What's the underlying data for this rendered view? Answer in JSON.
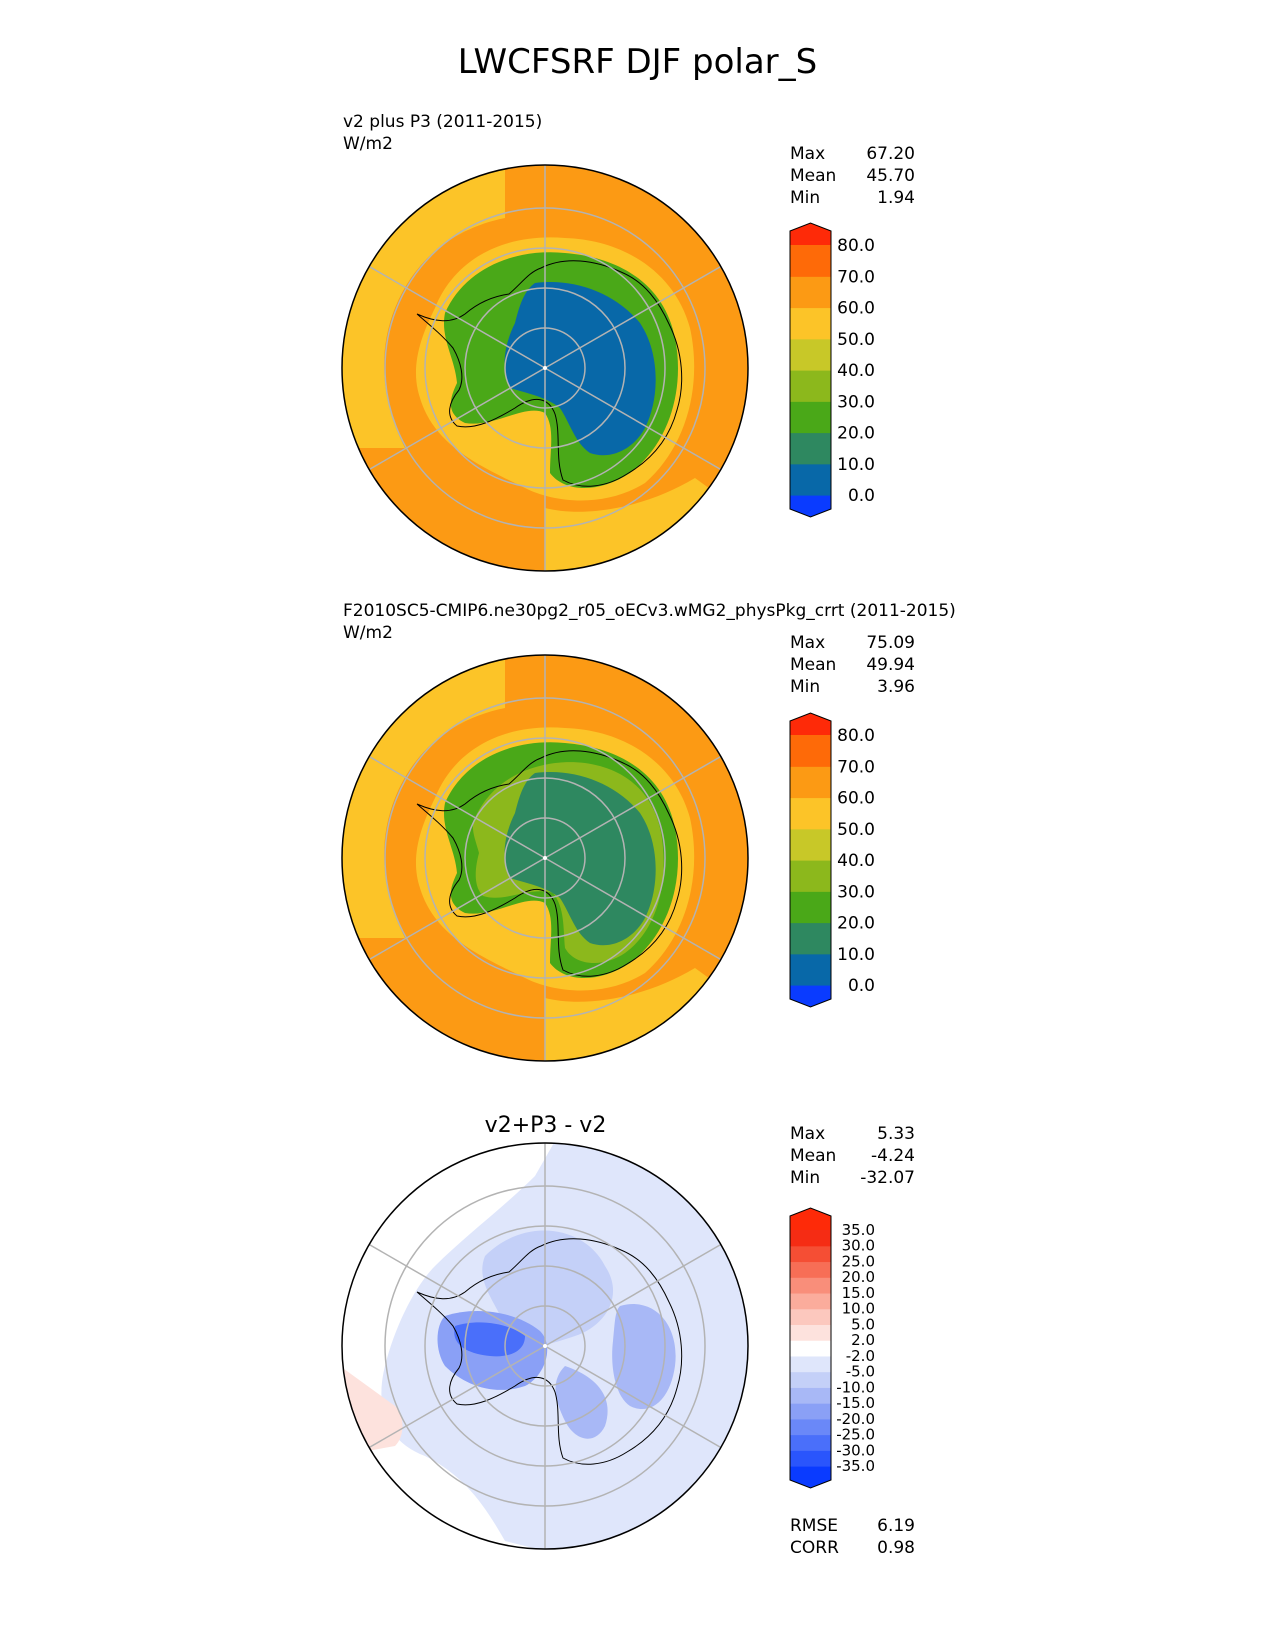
{
  "title": "LWCFSRF DJF polar_S",
  "panels": [
    {
      "label": "v2 plus P3 (2011-2015)",
      "units": "W/m2",
      "stats": {
        "max_label": "Max",
        "max": "67.20",
        "mean_label": "Mean",
        "mean": "45.70",
        "min_label": "Min",
        "min": "1.94"
      }
    },
    {
      "label": "F2010SC5-CMIP6.ne30pg2_r05_oECv3.wMG2_physPkg_crrt (2011-2015)",
      "units": "W/m2",
      "stats": {
        "max_label": "Max",
        "max": "75.09",
        "mean_label": "Mean",
        "mean": "49.94",
        "min_label": "Min",
        "min": "3.96"
      }
    },
    {
      "title": "v2+P3 - v2",
      "stats": {
        "max_label": "Max",
        "max": "5.33",
        "mean_label": "Mean",
        "mean": "-4.24",
        "min_label": "Min",
        "min": "-32.07"
      },
      "metrics": {
        "rmse_label": "RMSE",
        "rmse": "6.19",
        "corr_label": "CORR",
        "corr": "0.98"
      }
    }
  ],
  "chart_data": [
    {
      "type": "heatmap",
      "projection": "south-polar-stereographic",
      "title": "v2 plus P3 (2011-2015)",
      "units": "W/m2",
      "colorbar": {
        "levels": [
          0,
          10,
          20,
          30,
          40,
          50,
          60,
          70,
          80
        ],
        "tick_labels": [
          "0.0",
          "10.0",
          "20.0",
          "30.0",
          "40.0",
          "50.0",
          "60.0",
          "70.0",
          "80.0"
        ],
        "colors": [
          "#0a3bff",
          "#0868a8",
          "#2e8860",
          "#4aa818",
          "#8cb81c",
          "#c8c828",
          "#fcc428",
          "#fc9a14",
          "#fe6a08",
          "#fe2a08"
        ],
        "extend": "both"
      },
      "field": {
        "ice_sheet_interior": 5,
        "coastal_rim": 25,
        "sea_ice_belt": 50,
        "southern_ocean": 62,
        "max": 67.2,
        "mean": 45.7,
        "min": 1.94
      }
    },
    {
      "type": "heatmap",
      "projection": "south-polar-stereographic",
      "title": "F2010SC5-CMIP6.ne30pg2_r05_oECv3.wMG2_physPkg_crrt (2011-2015)",
      "units": "W/m2",
      "colorbar": {
        "levels": [
          0,
          10,
          20,
          30,
          40,
          50,
          60,
          70,
          80
        ],
        "tick_labels": [
          "0.0",
          "10.0",
          "20.0",
          "30.0",
          "40.0",
          "50.0",
          "60.0",
          "70.0",
          "80.0"
        ],
        "colors": [
          "#0a3bff",
          "#0868a8",
          "#2e8860",
          "#4aa818",
          "#8cb81c",
          "#c8c828",
          "#fcc428",
          "#fc9a14",
          "#fe6a08",
          "#fe2a08"
        ],
        "extend": "both"
      },
      "field": {
        "ice_sheet_interior": 12,
        "coastal_rim": 30,
        "sea_ice_belt": 55,
        "southern_ocean": 65,
        "max": 75.09,
        "mean": 49.94,
        "min": 3.96
      }
    },
    {
      "type": "heatmap",
      "projection": "south-polar-stereographic",
      "title": "v2+P3 - v2",
      "colorbar": {
        "levels": [
          -35,
          -30,
          -25,
          -20,
          -15,
          -10,
          -5,
          -2,
          2,
          5,
          10,
          15,
          20,
          25,
          30,
          35
        ],
        "tick_labels": [
          "-35.0",
          "-30.0",
          "-25.0",
          "-20.0",
          "-15.0",
          "-10.0",
          "-5.0",
          "-2.0",
          "2.0",
          "5.0",
          "10.0",
          "15.0",
          "20.0",
          "25.0",
          "30.0",
          "35.0"
        ],
        "colors": [
          "#0a3bff",
          "#2a55fc",
          "#4a6ffa",
          "#6a88f8",
          "#8aa0f6",
          "#a8b8f6",
          "#c4d0f8",
          "#dfe6fb",
          "#ffffff",
          "#fde2dd",
          "#fcc8be",
          "#fbac9c",
          "#f98e7a",
          "#f76e56",
          "#f54e34",
          "#f52c14",
          "#fe2a08"
        ],
        "extend": "both"
      },
      "field": {
        "max": 5.33,
        "mean": -4.24,
        "min": -32.07,
        "rmse": 6.19,
        "corr": 0.98
      }
    }
  ]
}
